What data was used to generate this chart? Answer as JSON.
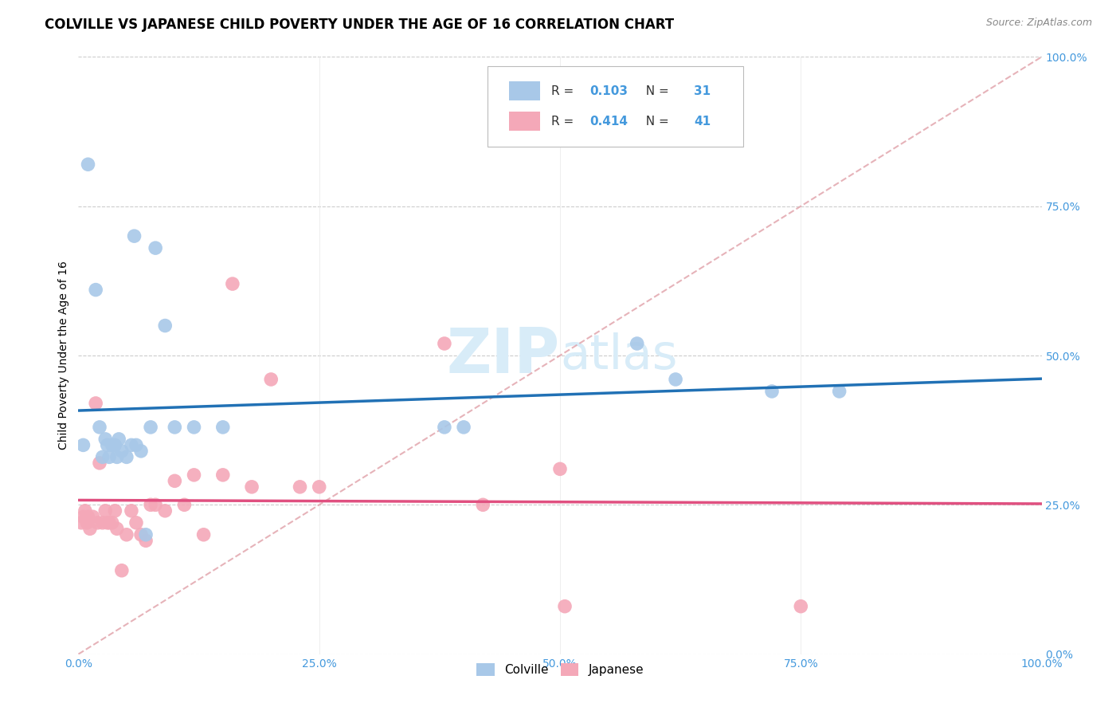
{
  "title": "COLVILLE VS JAPANESE CHILD POVERTY UNDER THE AGE OF 16 CORRELATION CHART",
  "source": "Source: ZipAtlas.com",
  "ylabel": "Child Poverty Under the Age of 16",
  "colville_color": "#a8c8e8",
  "japanese_color": "#f4a8b8",
  "colville_line_color": "#2171b5",
  "japanese_line_color": "#e05080",
  "ref_line_color": "#e0a0a8",
  "colville_R": 0.103,
  "colville_N": 31,
  "japanese_R": 0.414,
  "japanese_N": 41,
  "xlim": [
    0,
    1
  ],
  "ylim": [
    0,
    1
  ],
  "background_color": "#ffffff",
  "tick_color": "#4499dd",
  "colville_x": [
    0.005,
    0.01,
    0.018,
    0.022,
    0.025,
    0.028,
    0.03,
    0.032,
    0.035,
    0.038,
    0.04,
    0.042,
    0.045,
    0.05,
    0.055,
    0.058,
    0.06,
    0.065,
    0.07,
    0.075,
    0.08,
    0.09,
    0.1,
    0.12,
    0.15,
    0.38,
    0.4,
    0.58,
    0.62,
    0.72,
    0.79
  ],
  "colville_y": [
    0.35,
    0.82,
    0.61,
    0.38,
    0.33,
    0.36,
    0.35,
    0.33,
    0.35,
    0.35,
    0.33,
    0.36,
    0.34,
    0.33,
    0.35,
    0.7,
    0.35,
    0.34,
    0.2,
    0.38,
    0.68,
    0.55,
    0.38,
    0.38,
    0.38,
    0.38,
    0.38,
    0.52,
    0.46,
    0.44,
    0.44
  ],
  "japanese_x": [
    0.003,
    0.005,
    0.007,
    0.009,
    0.01,
    0.012,
    0.015,
    0.018,
    0.02,
    0.022,
    0.025,
    0.028,
    0.03,
    0.032,
    0.035,
    0.038,
    0.04,
    0.045,
    0.05,
    0.055,
    0.06,
    0.065,
    0.07,
    0.075,
    0.08,
    0.09,
    0.1,
    0.11,
    0.12,
    0.13,
    0.15,
    0.16,
    0.18,
    0.2,
    0.23,
    0.25,
    0.38,
    0.42,
    0.5,
    0.505,
    0.75
  ],
  "japanese_y": [
    0.22,
    0.23,
    0.24,
    0.22,
    0.23,
    0.21,
    0.23,
    0.42,
    0.22,
    0.32,
    0.22,
    0.24,
    0.22,
    0.22,
    0.22,
    0.24,
    0.21,
    0.14,
    0.2,
    0.24,
    0.22,
    0.2,
    0.19,
    0.25,
    0.25,
    0.24,
    0.29,
    0.25,
    0.3,
    0.2,
    0.3,
    0.62,
    0.28,
    0.46,
    0.28,
    0.28,
    0.52,
    0.25,
    0.31,
    0.08,
    0.08
  ],
  "watermark_zip": "ZIP",
  "watermark_atlas": "atlas",
  "watermark_color": "#d8ecf8",
  "title_fontsize": 12,
  "axis_label_fontsize": 10,
  "tick_fontsize": 10,
  "legend_fontsize": 11
}
